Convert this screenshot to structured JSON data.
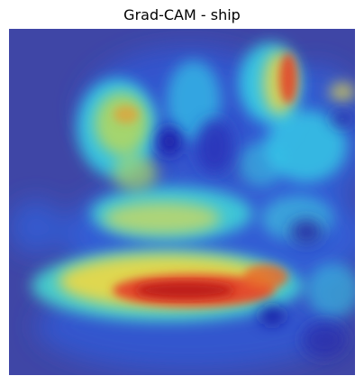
{
  "figure": {
    "title": "Grad-CAM - ship"
  },
  "heatmap": {
    "colormap": "jet",
    "colors": {
      "low": "#3a3fa8",
      "cool": "#2f6fe0",
      "cyan": "#35d6e8",
      "mid": "#9ad86a",
      "warm": "#e7d84a",
      "hot": "#e4452a",
      "peak": "#c41e1e"
    }
  }
}
